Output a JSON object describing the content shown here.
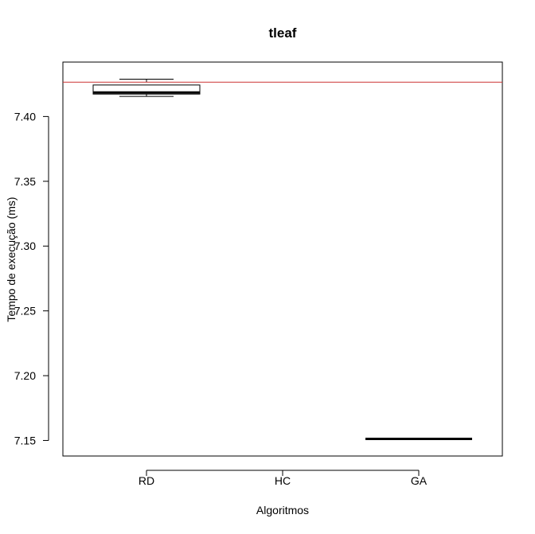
{
  "chart_data": {
    "type": "boxplot",
    "title": "tleaf",
    "xlabel": "Algoritmos",
    "ylabel": "Tempo de execução (ms)",
    "ylim": [
      7.138,
      7.442
    ],
    "yticks": [
      7.15,
      7.2,
      7.25,
      7.3,
      7.35,
      7.4
    ],
    "ytick_labels": [
      "7.15",
      "7.20",
      "7.25",
      "7.30",
      "7.35",
      "7.40"
    ],
    "categories": [
      "RD",
      "HC",
      "GA"
    ],
    "boxes": [
      {
        "category": "RD",
        "whisker_low": 7.4155,
        "q1": 7.4173,
        "median": 7.4185,
        "q3": 7.4243,
        "whisker_high": 7.4288
      },
      {
        "category": "HC",
        "whisker_low": null,
        "q1": null,
        "median": null,
        "q3": null,
        "whisker_high": null
      },
      {
        "category": "GA",
        "whisker_low": 7.1512,
        "q1": 7.1512,
        "median": 7.1512,
        "q3": 7.1512,
        "whisker_high": 7.1512
      }
    ],
    "reference_line": {
      "y": 7.4265,
      "color": "#cc3333"
    },
    "grid": false,
    "legend": "none"
  }
}
